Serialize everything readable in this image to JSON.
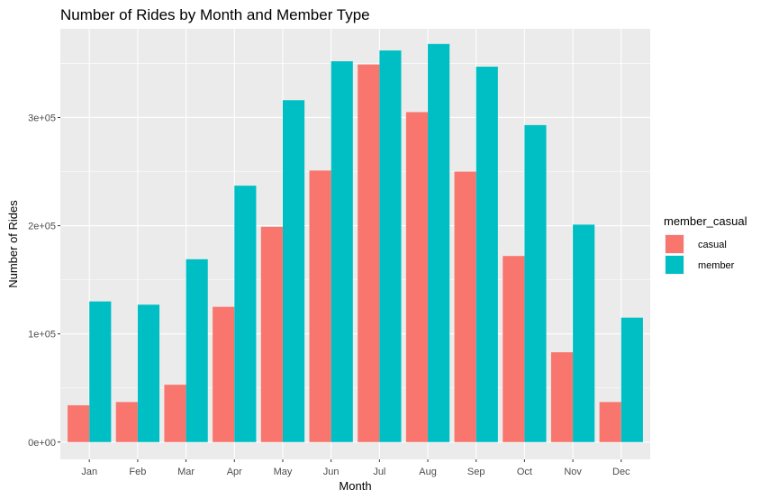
{
  "chart_data": {
    "type": "bar",
    "title": "Number of Rides by Month and Member Type",
    "xlabel": "Month",
    "ylabel": "Number of Rides",
    "categories": [
      "Jan",
      "Feb",
      "Mar",
      "Apr",
      "May",
      "Jun",
      "Jul",
      "Aug",
      "Sep",
      "Oct",
      "Nov",
      "Dec"
    ],
    "series": [
      {
        "name": "casual",
        "color": "#F8766D",
        "values": [
          34000,
          37000,
          53000,
          125000,
          199000,
          251000,
          349000,
          305000,
          250000,
          172000,
          83000,
          37000
        ]
      },
      {
        "name": "member",
        "color": "#00BFC4",
        "values": [
          130000,
          127000,
          169000,
          237000,
          316000,
          352000,
          362000,
          368000,
          347000,
          293000,
          201000,
          115000
        ]
      }
    ],
    "ylim": [
      -16000,
      382000
    ],
    "yticks": [
      {
        "value": 0,
        "label": "0e+00"
      },
      {
        "value": 100000,
        "label": "1e+05"
      },
      {
        "value": 200000,
        "label": "2e+05"
      },
      {
        "value": 300000,
        "label": "3e+05"
      }
    ],
    "legend": {
      "title": "member_casual",
      "position": "right"
    },
    "grid": true,
    "panel_background": "#EBEBEB"
  }
}
